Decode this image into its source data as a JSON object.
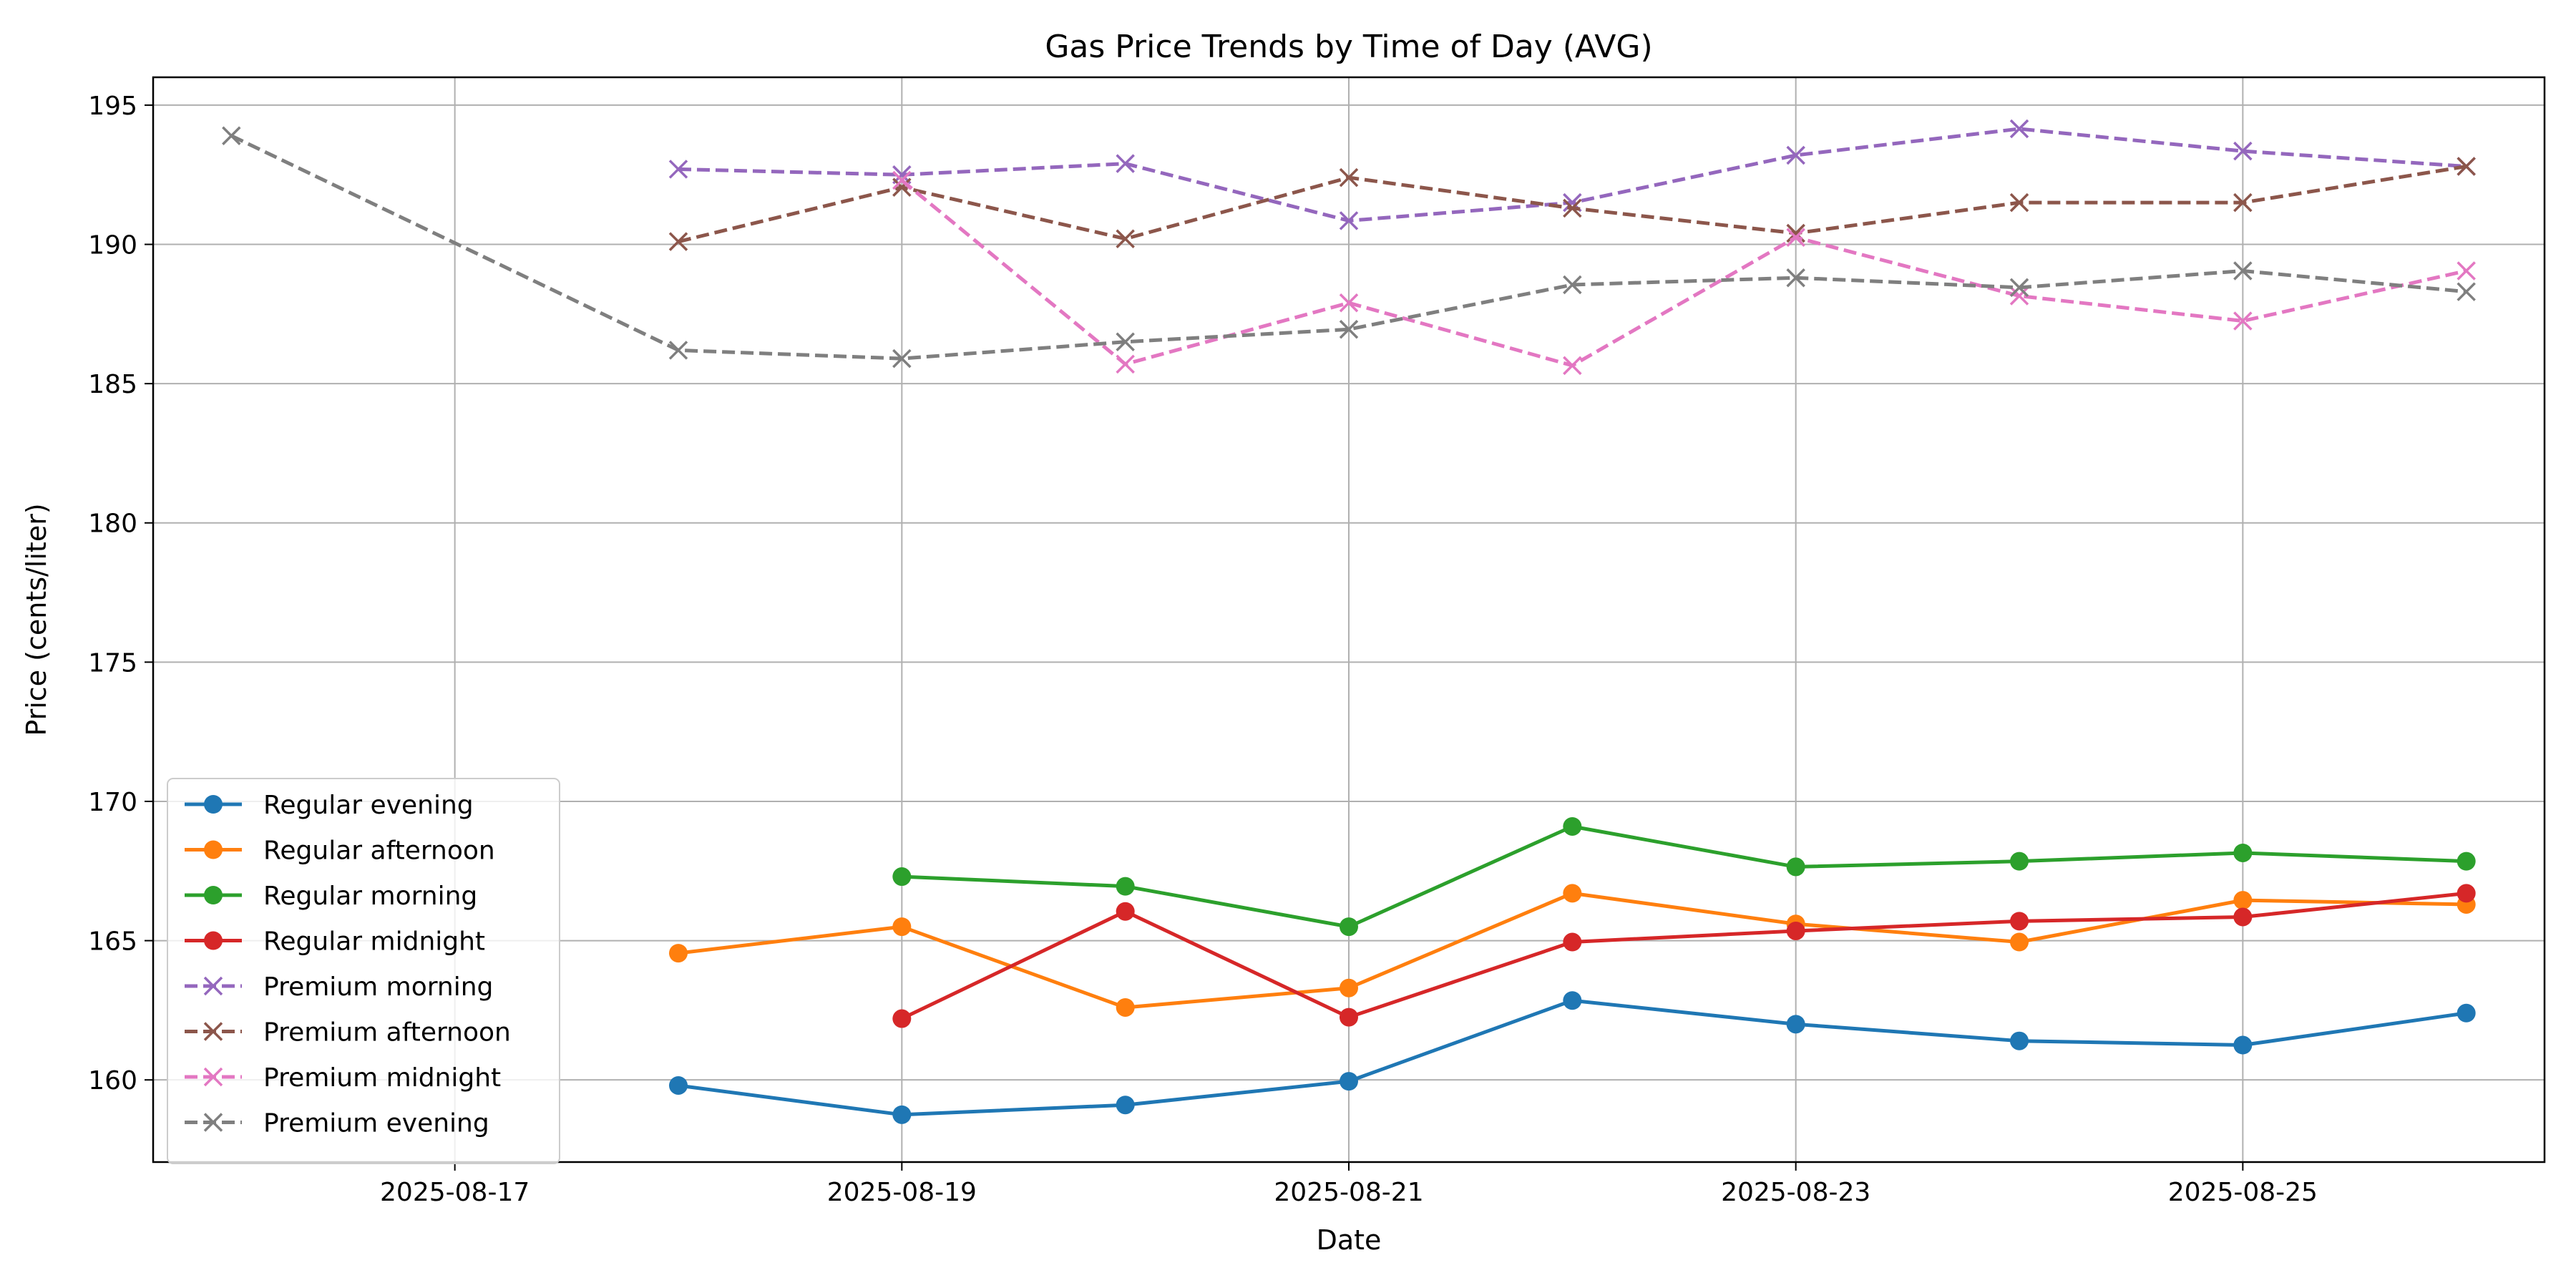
{
  "chart_data": {
    "type": "line",
    "title": "Gas Price Trends by Time of Day (AVG)",
    "xlabel": "Date",
    "ylabel": "Price (cents/liter)",
    "xlim": [
      "2025-08-15 15:36",
      "2025-08-26 08:24"
    ],
    "ylim": [
      157.05,
      196.0
    ],
    "grid": true,
    "legend_position": "lower-left",
    "x_ticks": [
      "2025-08-17",
      "2025-08-19",
      "2025-08-21",
      "2025-08-23",
      "2025-08-25"
    ],
    "y_ticks": [
      160,
      165,
      170,
      175,
      180,
      185,
      190,
      195
    ],
    "series": [
      {
        "name": "Regular evening",
        "color": "#1f77b4",
        "marker": "circle",
        "dash": "solid",
        "x": [
          "2025-08-18",
          "2025-08-19",
          "2025-08-20",
          "2025-08-21",
          "2025-08-22",
          "2025-08-23",
          "2025-08-24",
          "2025-08-25",
          "2025-08-26"
        ],
        "y": [
          159.8,
          158.75,
          159.1,
          159.95,
          162.85,
          162.0,
          161.4,
          161.25,
          162.4
        ]
      },
      {
        "name": "Regular afternoon",
        "color": "#ff7f0e",
        "marker": "circle",
        "dash": "solid",
        "x": [
          "2025-08-18",
          "2025-08-19",
          "2025-08-20",
          "2025-08-21",
          "2025-08-22",
          "2025-08-23",
          "2025-08-24",
          "2025-08-25",
          "2025-08-26"
        ],
        "y": [
          164.55,
          165.5,
          162.6,
          163.3,
          166.7,
          165.6,
          164.95,
          166.45,
          166.3
        ]
      },
      {
        "name": "Regular morning",
        "color": "#2ca02c",
        "marker": "circle",
        "dash": "solid",
        "x": [
          "2025-08-19",
          "2025-08-20",
          "2025-08-21",
          "2025-08-22",
          "2025-08-23",
          "2025-08-24",
          "2025-08-25",
          "2025-08-26"
        ],
        "y": [
          167.3,
          166.95,
          165.5,
          169.1,
          167.65,
          167.85,
          168.15,
          167.85
        ]
      },
      {
        "name": "Regular midnight",
        "color": "#d62728",
        "marker": "circle",
        "dash": "solid",
        "x": [
          "2025-08-19",
          "2025-08-20",
          "2025-08-21",
          "2025-08-22",
          "2025-08-23",
          "2025-08-24",
          "2025-08-25",
          "2025-08-26"
        ],
        "y": [
          162.2,
          166.05,
          162.25,
          164.95,
          165.35,
          165.7,
          165.85,
          166.7
        ]
      },
      {
        "name": "Premium morning",
        "color": "#9467bd",
        "marker": "x",
        "dash": "dashed",
        "x": [
          "2025-08-18",
          "2025-08-19",
          "2025-08-20",
          "2025-08-21",
          "2025-08-22",
          "2025-08-23",
          "2025-08-24",
          "2025-08-25",
          "2025-08-26"
        ],
        "y": [
          192.7,
          192.5,
          192.9,
          190.85,
          191.5,
          193.2,
          194.15,
          193.35,
          192.8
        ]
      },
      {
        "name": "Premium afternoon",
        "color": "#8c564b",
        "marker": "x",
        "dash": "dashed",
        "x": [
          "2025-08-18",
          "2025-08-19",
          "2025-08-20",
          "2025-08-21",
          "2025-08-22",
          "2025-08-23",
          "2025-08-24",
          "2025-08-25",
          "2025-08-26"
        ],
        "y": [
          190.1,
          192.05,
          190.2,
          192.4,
          191.3,
          190.4,
          191.5,
          191.5,
          192.8
        ]
      },
      {
        "name": "Premium midnight",
        "color": "#e377c2",
        "marker": "x",
        "dash": "dashed",
        "x": [
          "2025-08-19",
          "2025-08-20",
          "2025-08-21",
          "2025-08-22",
          "2025-08-23",
          "2025-08-24",
          "2025-08-25",
          "2025-08-26"
        ],
        "y": [
          192.3,
          185.7,
          187.9,
          185.65,
          190.25,
          188.15,
          187.25,
          189.05
        ]
      },
      {
        "name": "Premium evening",
        "color": "#7f7f7f",
        "marker": "x",
        "dash": "dashed",
        "x": [
          "2025-08-16",
          "2025-08-18",
          "2025-08-19",
          "2025-08-20",
          "2025-08-21",
          "2025-08-22",
          "2025-08-23",
          "2025-08-24",
          "2025-08-25",
          "2025-08-26"
        ],
        "y": [
          193.9,
          186.2,
          185.9,
          186.5,
          186.95,
          188.55,
          188.8,
          188.45,
          189.05,
          188.3
        ]
      }
    ]
  }
}
